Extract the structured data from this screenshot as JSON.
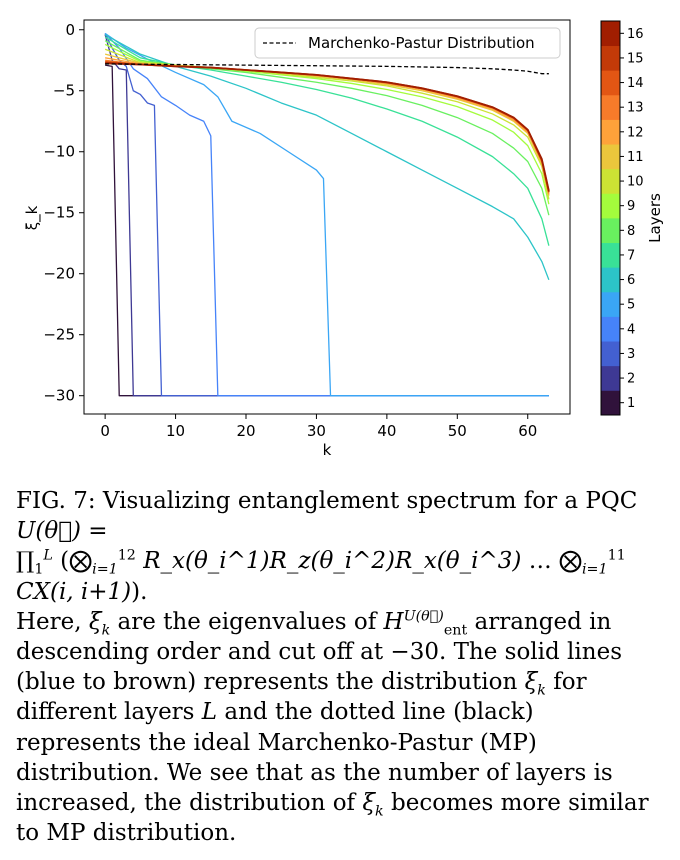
{
  "chart_data": {
    "type": "line",
    "title": "",
    "xlabel": "k",
    "ylabel": "ξ_k",
    "xlim": [
      -3,
      66
    ],
    "ylim": [
      -31.5,
      0.8
    ],
    "xticks": [
      0,
      10,
      20,
      30,
      40,
      50,
      60
    ],
    "yticks": [
      0,
      -5,
      -10,
      -15,
      -20,
      -25,
      -30
    ],
    "xtick_labels": [
      "0",
      "10",
      "20",
      "30",
      "40",
      "50",
      "60"
    ],
    "ytick_labels": [
      "0",
      "−5",
      "−10",
      "−15",
      "−20",
      "−25",
      "−30"
    ],
    "grid": false,
    "legend": {
      "placement": "top-right",
      "entries": [
        "Marchenko-Pastur Distribution"
      ]
    },
    "reference_series": {
      "name": "Marchenko-Pastur Distribution",
      "style": "dashed",
      "color": "#000000",
      "x": [
        0,
        10,
        20,
        30,
        40,
        45,
        50,
        55,
        58,
        60,
        62,
        63
      ],
      "y": [
        -2.8,
        -2.85,
        -2.9,
        -2.95,
        -3.0,
        -3.05,
        -3.1,
        -3.2,
        -3.3,
        -3.4,
        -3.6,
        -3.6
      ]
    },
    "colorbar": {
      "label": "Layers",
      "ticks": [
        "1",
        "2",
        "3",
        "4",
        "5",
        "6",
        "7",
        "8",
        "9",
        "10",
        "11",
        "12",
        "13",
        "14",
        "15",
        "16"
      ],
      "colors": [
        "#30123b",
        "#3e3994",
        "#4360d1",
        "#4683f9",
        "#3aa6f5",
        "#2cc4c8",
        "#39e197",
        "#69f05f",
        "#a4fc3c",
        "#cce334",
        "#ebc63c",
        "#fea23a",
        "#f77b2a",
        "#e25614",
        "#c33a08",
        "#a11e01"
      ]
    },
    "series": [
      {
        "layer": 1,
        "x": [
          0,
          1,
          2,
          63
        ],
        "y": [
          -2.9,
          -3.0,
          -30,
          -30
        ]
      },
      {
        "layer": 2,
        "x": [
          0,
          1,
          2,
          3,
          4,
          63
        ],
        "y": [
          -0.4,
          -2.5,
          -3.2,
          -3.3,
          -30,
          -30
        ]
      },
      {
        "layer": 3,
        "x": [
          0,
          1,
          2,
          3,
          4,
          5,
          6,
          7,
          8,
          63
        ],
        "y": [
          -0.3,
          -1.5,
          -2.5,
          -3.0,
          -5.0,
          -5.3,
          -6.0,
          -6.2,
          -30,
          -30
        ]
      },
      {
        "layer": 4,
        "x": [
          0,
          2,
          4,
          6,
          8,
          10,
          12,
          14,
          15,
          16,
          63
        ],
        "y": [
          -0.3,
          -1.5,
          -3.2,
          -4.0,
          -5.5,
          -6.2,
          -7.0,
          -7.5,
          -8.7,
          -30,
          -30
        ]
      },
      {
        "layer": 5,
        "x": [
          0,
          3,
          6,
          10,
          14,
          16,
          18,
          22,
          26,
          30,
          31,
          32,
          63
        ],
        "y": [
          -0.3,
          -1.5,
          -2.4,
          -3.5,
          -4.5,
          -5.5,
          -7.5,
          -8.5,
          -10.0,
          -11.5,
          -12.2,
          -30,
          -30
        ]
      },
      {
        "layer": 6,
        "x": [
          0,
          5,
          10,
          15,
          20,
          25,
          30,
          35,
          40,
          45,
          50,
          55,
          58,
          60,
          62,
          63
        ],
        "y": [
          -0.4,
          -2.0,
          -3.0,
          -3.8,
          -4.8,
          -6.0,
          -7.0,
          -8.5,
          -10.0,
          -11.5,
          -13.0,
          -14.5,
          -15.5,
          -17.0,
          -19.0,
          -20.5
        ]
      },
      {
        "layer": 7,
        "x": [
          0,
          5,
          10,
          15,
          20,
          25,
          30,
          35,
          40,
          45,
          50,
          55,
          58,
          60,
          62,
          63
        ],
        "y": [
          -0.6,
          -2.3,
          -2.9,
          -3.3,
          -3.8,
          -4.3,
          -4.9,
          -5.6,
          -6.5,
          -7.5,
          -8.8,
          -10.4,
          -11.8,
          -13.0,
          -15.5,
          -17.7
        ]
      },
      {
        "layer": 8,
        "x": [
          0,
          5,
          10,
          15,
          20,
          25,
          30,
          35,
          40,
          45,
          50,
          55,
          58,
          60,
          62,
          63
        ],
        "y": [
          -0.9,
          -2.5,
          -2.9,
          -3.2,
          -3.5,
          -3.9,
          -4.3,
          -4.8,
          -5.4,
          -6.2,
          -7.2,
          -8.5,
          -9.7,
          -10.8,
          -13.0,
          -15.2
        ]
      },
      {
        "layer": 9,
        "x": [
          0,
          5,
          10,
          15,
          20,
          25,
          30,
          35,
          40,
          45,
          50,
          55,
          58,
          60,
          62,
          63
        ],
        "y": [
          -1.2,
          -2.6,
          -2.9,
          -3.1,
          -3.4,
          -3.7,
          -4.0,
          -4.4,
          -4.9,
          -5.5,
          -6.3,
          -7.4,
          -8.4,
          -9.5,
          -11.8,
          -14.3
        ]
      },
      {
        "layer": 10,
        "x": [
          0,
          5,
          10,
          15,
          20,
          25,
          30,
          35,
          40,
          45,
          50,
          55,
          58,
          60,
          62,
          63
        ],
        "y": [
          -1.6,
          -2.7,
          -2.9,
          -3.1,
          -3.3,
          -3.6,
          -3.9,
          -4.2,
          -4.6,
          -5.2,
          -5.9,
          -6.9,
          -7.8,
          -8.8,
          -11.2,
          -13.9
        ]
      },
      {
        "layer": 11,
        "x": [
          0,
          5,
          10,
          15,
          20,
          25,
          30,
          35,
          40,
          45,
          50,
          55,
          58,
          60,
          62,
          63
        ],
        "y": [
          -2.0,
          -2.75,
          -2.95,
          -3.1,
          -3.3,
          -3.55,
          -3.8,
          -4.1,
          -4.5,
          -5.0,
          -5.7,
          -6.6,
          -7.5,
          -8.5,
          -11.0,
          -13.6
        ]
      },
      {
        "layer": 12,
        "x": [
          0,
          5,
          10,
          15,
          20,
          25,
          30,
          35,
          40,
          45,
          50,
          55,
          58,
          60,
          62,
          63
        ],
        "y": [
          -2.3,
          -2.8,
          -2.95,
          -3.1,
          -3.3,
          -3.5,
          -3.75,
          -4.05,
          -4.4,
          -4.9,
          -5.6,
          -6.5,
          -7.4,
          -8.4,
          -10.9,
          -13.5
        ]
      },
      {
        "layer": 13,
        "x": [
          0,
          5,
          10,
          15,
          20,
          25,
          30,
          35,
          40,
          45,
          50,
          55,
          58,
          60,
          62,
          63
        ],
        "y": [
          -2.5,
          -2.85,
          -3.0,
          -3.1,
          -3.3,
          -3.5,
          -3.75,
          -4.0,
          -4.35,
          -4.85,
          -5.5,
          -6.4,
          -7.3,
          -8.3,
          -10.8,
          -13.4
        ]
      },
      {
        "layer": 14,
        "x": [
          0,
          5,
          10,
          15,
          20,
          25,
          30,
          35,
          40,
          45,
          50,
          55,
          58,
          60,
          62,
          63
        ],
        "y": [
          -2.6,
          -2.85,
          -3.0,
          -3.1,
          -3.3,
          -3.5,
          -3.7,
          -4.0,
          -4.35,
          -4.8,
          -5.5,
          -6.4,
          -7.25,
          -8.25,
          -10.7,
          -13.3
        ]
      },
      {
        "layer": 15,
        "x": [
          0,
          5,
          10,
          15,
          20,
          25,
          30,
          35,
          40,
          45,
          50,
          55,
          58,
          60,
          62,
          63
        ],
        "y": [
          -2.7,
          -2.85,
          -3.0,
          -3.1,
          -3.3,
          -3.5,
          -3.7,
          -4.0,
          -4.3,
          -4.8,
          -5.45,
          -6.35,
          -7.2,
          -8.2,
          -10.7,
          -13.3
        ]
      },
      {
        "layer": 16,
        "x": [
          0,
          5,
          10,
          15,
          20,
          25,
          30,
          35,
          40,
          45,
          50,
          55,
          58,
          60,
          62,
          63
        ],
        "y": [
          -2.75,
          -2.85,
          -3.0,
          -3.1,
          -3.3,
          -3.5,
          -3.7,
          -4.0,
          -4.3,
          -4.8,
          -5.45,
          -6.35,
          -7.2,
          -8.2,
          -10.6,
          -13.2
        ]
      }
    ]
  },
  "caption": {
    "fig_label": "FIG. 7:",
    "line1": "Visualizing entanglement spectrum for a PQC",
    "circuit_eq": "U(θ⃗) =",
    "product": "∏",
    "product_sub": "1",
    "product_sup": "L",
    "tensor": "⨂",
    "tensor_sub1": "i=1",
    "tensor_sup1": "12",
    "gates": "R_x(θ_i^1)R_z(θ_i^2)R_x(θ_i^3)",
    "ellipsis": "…",
    "tensor_sub2": "i=1",
    "tensor_sup2": "11",
    "cx": "CX(i, i+1)",
    "para_1": "Here,",
    "xi_k": "ξ",
    "k": "k",
    "para_2": "are the eigenvalues of",
    "h_ent": "H",
    "h_sub": "ent",
    "h_sup": "U(θ⃗)",
    "para_3": "arranged in descending order and cut off at −30. The solid lines (blue to brown) represents the distribution",
    "para_4": "for different layers",
    "L": "L",
    "para_5": "and the dotted line (black) represents the ideal Marchenko-Pastur (MP) distribution. We see that as the number of layers is increased, the distribution of",
    "para_6": "becomes more similar to MP distribution."
  }
}
